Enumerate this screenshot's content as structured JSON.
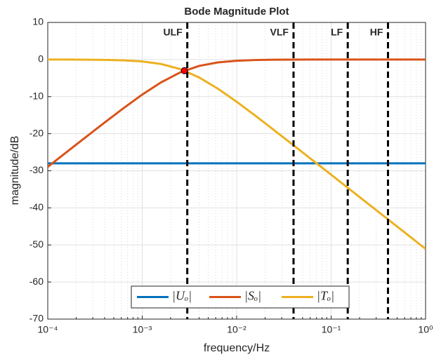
{
  "chart_data": {
    "type": "line",
    "title": "Bode Magnitude Plot",
    "xlabel": "frequency/Hz",
    "ylabel": "magnitude/dB",
    "xscale": "log",
    "grid": true,
    "minor_grid": true,
    "legend_position": "bottom",
    "x": [
      0.0001,
      0.0001585,
      0.0002512,
      0.0003981,
      0.000631,
      0.001,
      0.001585,
      0.002512,
      0.003981,
      0.00631,
      0.01,
      0.01585,
      0.02512,
      0.03981,
      0.0631,
      0.1,
      0.1585,
      0.2512,
      0.3981,
      0.631,
      1
    ],
    "series": [
      {
        "name": "|Uₒ|",
        "color": "#0072BD",
        "values": [
          -28,
          -28,
          -28,
          -28,
          -28,
          -28,
          -28,
          -28,
          -28,
          -28,
          -28,
          -28,
          -28,
          -28,
          -28,
          -28,
          -28,
          -28,
          -28,
          -28,
          -28
        ]
      },
      {
        "name": "|Sₒ|",
        "color": "#D95319",
        "values": [
          -28.95,
          -24.96,
          -20.98,
          -17.03,
          -13.16,
          -9.46,
          -6.15,
          -3.5,
          -1.74,
          -0.78,
          -0.33,
          -0.13,
          -0.05,
          -0.02,
          -0.01,
          0,
          0,
          0,
          0,
          0,
          0
        ]
      },
      {
        "name": "|Tₒ|",
        "color": "#EDB120",
        "values": [
          -0.01,
          -0.01,
          -0.04,
          -0.09,
          -0.22,
          -0.52,
          -1.21,
          -2.56,
          -4.8,
          -7.84,
          -11.39,
          -15.19,
          -19.11,
          -23.08,
          -27.07,
          -31.06,
          -35.06,
          -39.06,
          -43.06,
          -47.06,
          -51.06
        ]
      }
    ],
    "marker": {
      "x": 0.0028,
      "y": -3,
      "color": "#FF0000"
    },
    "vlines": [
      {
        "x": 0.003,
        "label": "ULF"
      },
      {
        "x": 0.04,
        "label": "VLF"
      },
      {
        "x": 0.15,
        "label": "LF"
      },
      {
        "x": 0.4,
        "label": "HF"
      }
    ],
    "xlim": [
      0.0001,
      1
    ],
    "ylim": [
      -70,
      10
    ],
    "xticks": [
      {
        "value": 0.0001,
        "label": "10⁻⁴"
      },
      {
        "value": 0.001,
        "label": "10⁻³"
      },
      {
        "value": 0.01,
        "label": "10⁻²"
      },
      {
        "value": 0.1,
        "label": "10⁻¹"
      },
      {
        "value": 1,
        "label": "10⁰"
      }
    ],
    "xticks_minor": [
      0.0002,
      0.0003,
      0.0004,
      0.0005,
      0.0006,
      0.0007,
      0.0008,
      0.0009,
      0.002,
      0.003,
      0.004,
      0.005,
      0.006,
      0.007,
      0.008,
      0.009,
      0.02,
      0.03,
      0.04,
      0.05,
      0.06,
      0.07,
      0.08,
      0.09,
      0.2,
      0.3,
      0.4,
      0.5,
      0.6,
      0.7,
      0.8,
      0.9
    ],
    "yticks": [
      -70,
      -60,
      -50,
      -40,
      -30,
      -20,
      -10,
      0,
      10
    ]
  }
}
